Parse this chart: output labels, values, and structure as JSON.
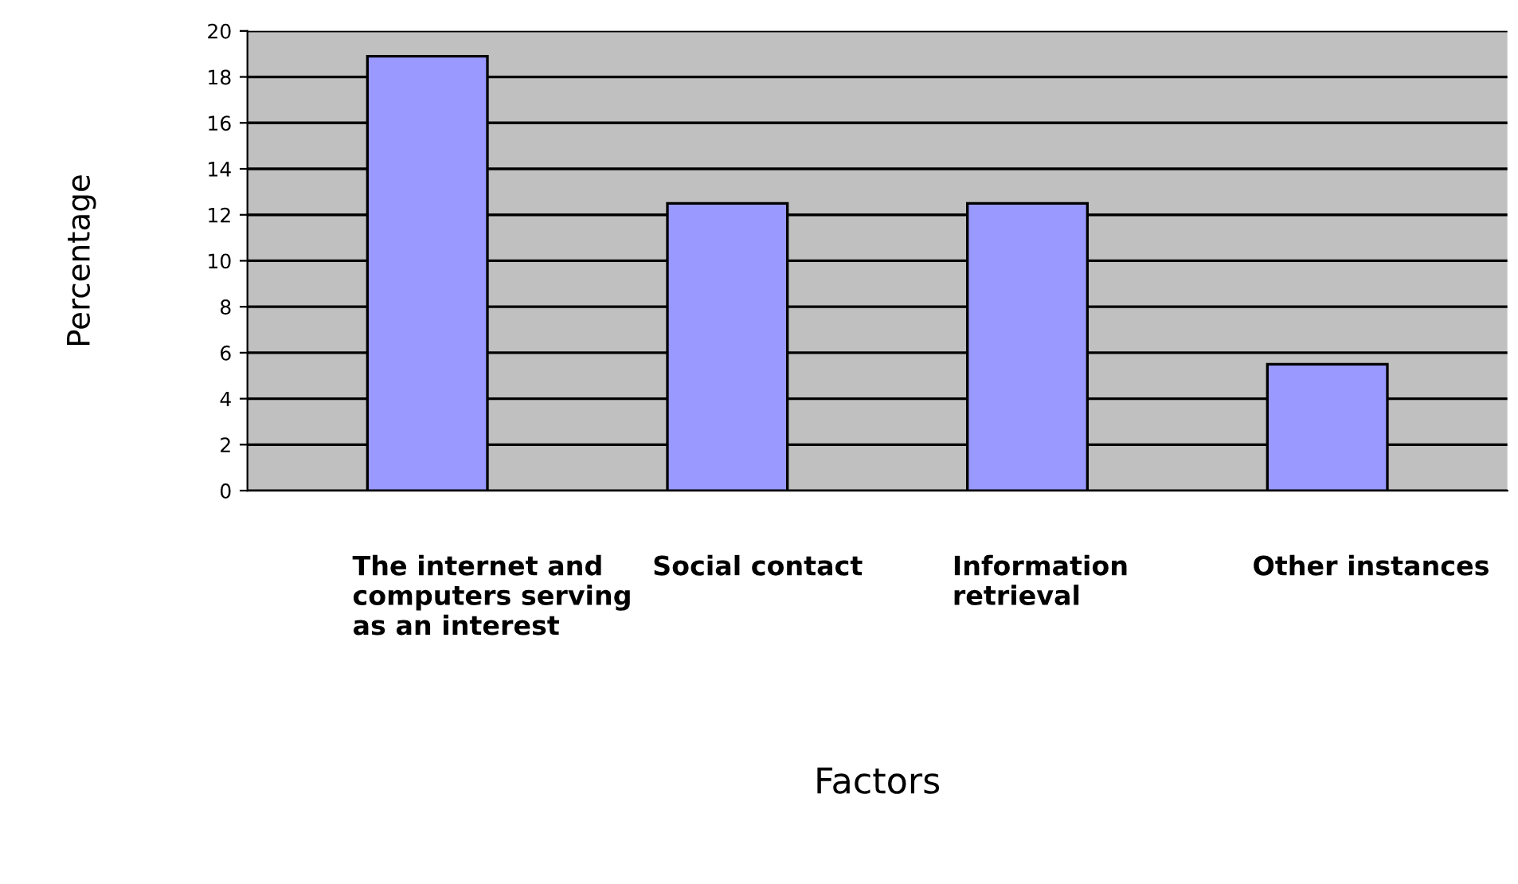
{
  "chart_data": {
    "type": "bar",
    "xlabel": "Factors",
    "ylabel": "Percentage",
    "categories": [
      "The internet and\ncomputers serving\nas an interest",
      "Social contact",
      "Information\nretrieval",
      "Other instances"
    ],
    "values": [
      18.9,
      12.5,
      12.5,
      5.5
    ],
    "color": "#9999ff",
    "ylim": [
      0,
      20
    ],
    "yticks": [
      0,
      2,
      4,
      6,
      8,
      10,
      12,
      14,
      16,
      18,
      20
    ],
    "grid": "y"
  }
}
